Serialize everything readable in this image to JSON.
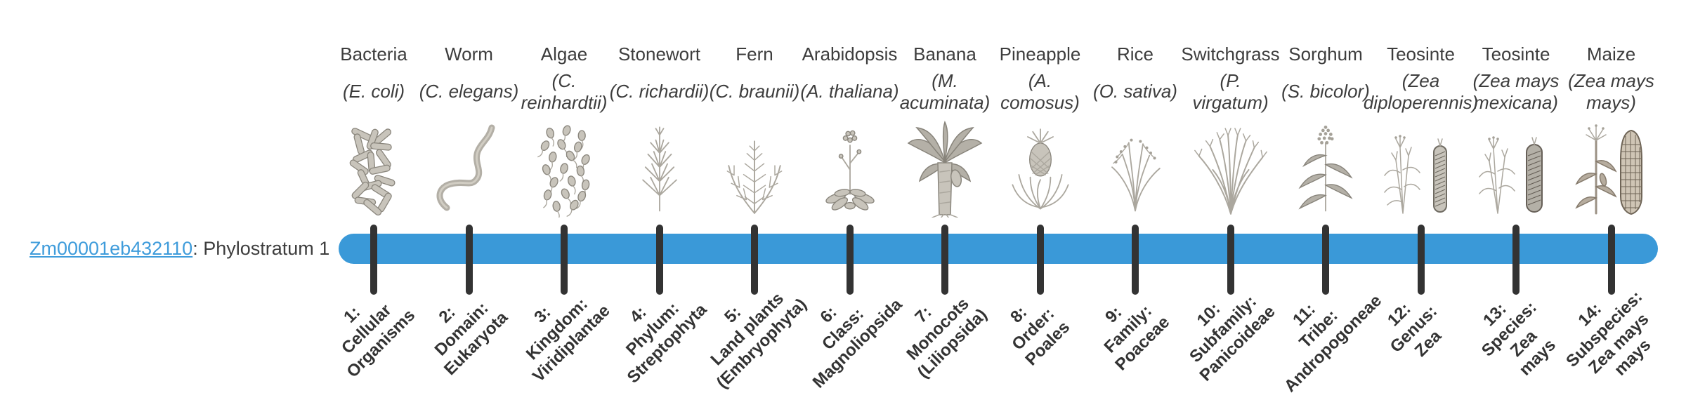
{
  "gene": {
    "id": "Zm00001eb432110",
    "suffix": ": Phylostratum 1"
  },
  "colors": {
    "bar": "#3a99d8",
    "tick": "#333333",
    "link": "#3f9cdb"
  },
  "organisms": [
    {
      "name": "Bacteria",
      "species": "(E. coli)",
      "icon": "bacteria-image",
      "stratum": "1:\nCellular\nOrganisms"
    },
    {
      "name": "Worm",
      "species": "(C. elegans)",
      "icon": "worm-image",
      "stratum": "2:\nDomain:\nEukaryota"
    },
    {
      "name": "Algae",
      "species": "(C.\nreinhardtii)",
      "icon": "algae-image",
      "stratum": "3:\nKingdom:\nViridiplantae"
    },
    {
      "name": "Stonewort",
      "species": "(C. richardii)",
      "icon": "stonewort-image",
      "stratum": "4:\nPhylum:\nStreptophyta"
    },
    {
      "name": "Fern",
      "species": "(C. braunii)",
      "icon": "fern-image",
      "stratum": "5:\nLand plants\n(Embryophyta)"
    },
    {
      "name": "Arabidopsis",
      "species": "(A. thaliana)",
      "icon": "arabidopsis-image",
      "stratum": "6:\nClass:\nMagnoliopsida"
    },
    {
      "name": "Banana",
      "species": "(M.\nacuminata)",
      "icon": "banana-image",
      "stratum": "7:\nMonocots\n(Liliopsida)"
    },
    {
      "name": "Pineapple",
      "species": "(A.\ncomosus)",
      "icon": "pineapple-image",
      "stratum": "8:\nOrder:\nPoales"
    },
    {
      "name": "Rice",
      "species": "(O. sativa)",
      "icon": "rice-image",
      "stratum": "9:\nFamily:\nPoaceae"
    },
    {
      "name": "Switchgrass",
      "species": "(P.\nvirgatum)",
      "icon": "switchgrass-image",
      "stratum": "10:\nSubfamily:\nPanicoideae"
    },
    {
      "name": "Sorghum",
      "species": "(S. bicolor)",
      "icon": "sorghum-image",
      "stratum": "11:\nTribe:\nAndropogoneae"
    },
    {
      "name": "Teosinte",
      "species": "(Zea\ndiploperennis)",
      "icon": "teosinte-diploperennis-image",
      "stratum": "12:\nGenus:\nZea"
    },
    {
      "name": "Teosinte",
      "species": "(Zea mays\nmexicana)",
      "icon": "teosinte-mexicana-image",
      "stratum": "13:\nSpecies:\nZea\nmays"
    },
    {
      "name": "Maize",
      "species": "(Zea mays\nmays)",
      "icon": "maize-image",
      "stratum": "14:\nSubspecies:\nZea mays\nmays"
    }
  ]
}
